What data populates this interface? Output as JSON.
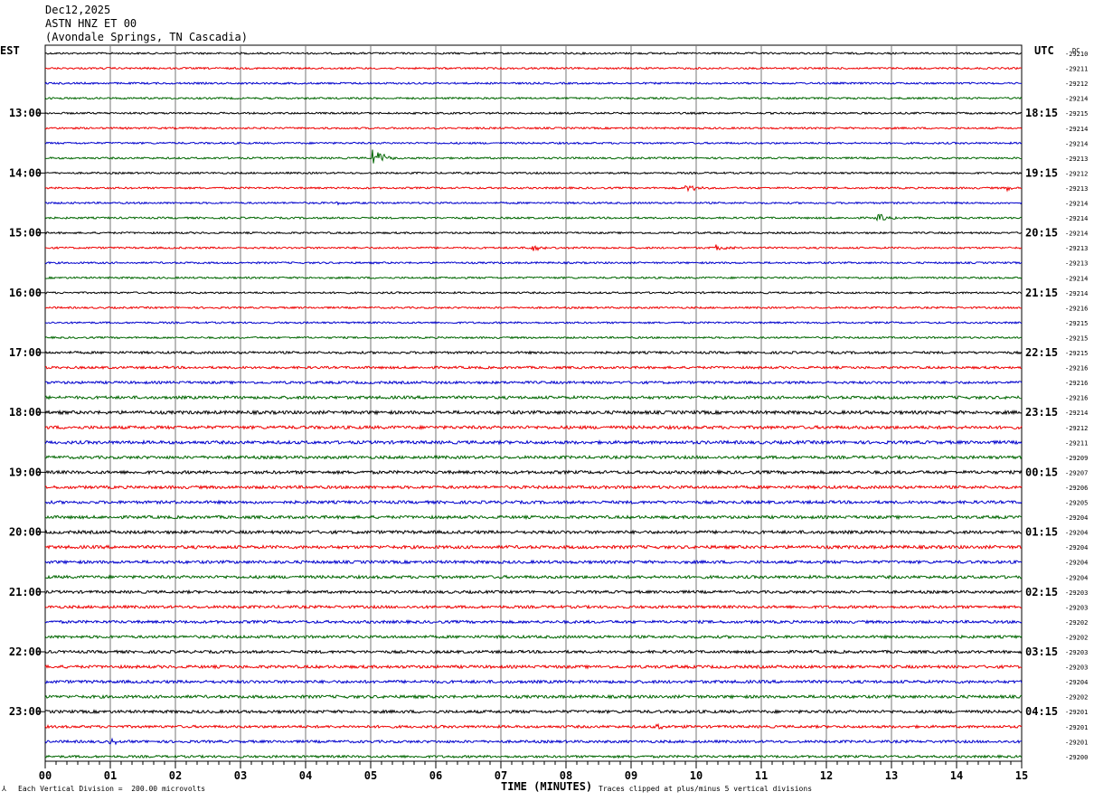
{
  "header": {
    "date": "Dec12,2025",
    "station": "ASTN HNZ ET 00",
    "location": "(Avondale Springs, TN Cascadia)"
  },
  "axis_labels": {
    "left_tz": "EST",
    "right_tz": "UTC",
    "dc": "DC"
  },
  "footer": {
    "scale_note": "Each Vertical Division =  200.00 microvolts",
    "xlabel": "TIME (MINUTES)",
    "clip_note": "Traces clipped at plus/minus 5 vertical divisions"
  },
  "colors": {
    "trace_cycle": [
      "#000000",
      "#ee0000",
      "#0000cc",
      "#006600"
    ],
    "grid": "#777777"
  },
  "chart_data": {
    "type": "line",
    "title": "",
    "xlabel": "TIME (MINUTES)",
    "x_ticks": [
      "00",
      "01",
      "02",
      "03",
      "04",
      "05",
      "06",
      "07",
      "08",
      "09",
      "10",
      "11",
      "12",
      "13",
      "14",
      "15"
    ],
    "xlim": [
      0,
      15
    ],
    "grid": true,
    "left_hour_labels": [
      "13:00",
      "14:00",
      "15:00",
      "16:00",
      "17:00",
      "18:00",
      "19:00",
      "20:00",
      "21:00",
      "22:00",
      "23:00"
    ],
    "right_hour_labels": [
      "18:15",
      "19:15",
      "20:15",
      "21:15",
      "22:15",
      "23:15",
      "00:15",
      "01:15",
      "02:15",
      "03:15",
      "04:15"
    ],
    "dc_offsets": [
      "-29210",
      "-29211",
      "-29212",
      "-29214",
      "-29215",
      "-29214",
      "-29214",
      "-29213",
      "-29212",
      "-29213",
      "-29214",
      "-29214",
      "-29214",
      "-29213",
      "-29213",
      "-29214",
      "-29214",
      "-29216",
      "-29215",
      "-29215",
      "-29215",
      "-29216",
      "-29216",
      "-29216",
      "-29214",
      "-29212",
      "-29211",
      "-29209",
      "-29207",
      "-29206",
      "-29205",
      "-29204",
      "-29204",
      "-29204",
      "-29204",
      "-29204",
      "-29203",
      "-29203",
      "-29202",
      "-29202",
      "-29203",
      "-29203",
      "-29204",
      "-29202",
      "-29201",
      "-29201",
      "-29201",
      "-29200"
    ],
    "trace_noise": [
      1,
      1,
      1,
      1,
      1,
      1,
      1,
      1,
      1,
      1,
      1,
      1,
      1,
      1,
      1,
      1,
      1,
      1,
      1,
      1,
      1.3,
      1.3,
      1.4,
      1.6,
      1.8,
      1.7,
      1.7,
      1.6,
      1.7,
      1.6,
      1.6,
      1.6,
      1.7,
      1.7,
      1.6,
      1.6,
      1.5,
      1.5,
      1.5,
      1.5,
      1.5,
      1.6,
      1.6,
      1.6,
      1.6,
      1.4,
      1.4,
      1.3
    ],
    "events": [
      {
        "trace": 7,
        "minute": 5.05,
        "amplitude": 9
      },
      {
        "trace": 9,
        "minute": 9.85,
        "amplitude": 4
      },
      {
        "trace": 9,
        "minute": 14.8,
        "amplitude": 2
      },
      {
        "trace": 10,
        "minute": 4.5,
        "amplitude": 1.5
      },
      {
        "trace": 11,
        "minute": 12.8,
        "amplitude": 3
      },
      {
        "trace": 13,
        "minute": 7.5,
        "amplitude": 3
      },
      {
        "trace": 13,
        "minute": 10.3,
        "amplitude": 3
      },
      {
        "trace": 45,
        "minute": 9.4,
        "amplitude": 2
      },
      {
        "trace": 46,
        "minute": 1.0,
        "amplitude": 2
      }
    ]
  }
}
